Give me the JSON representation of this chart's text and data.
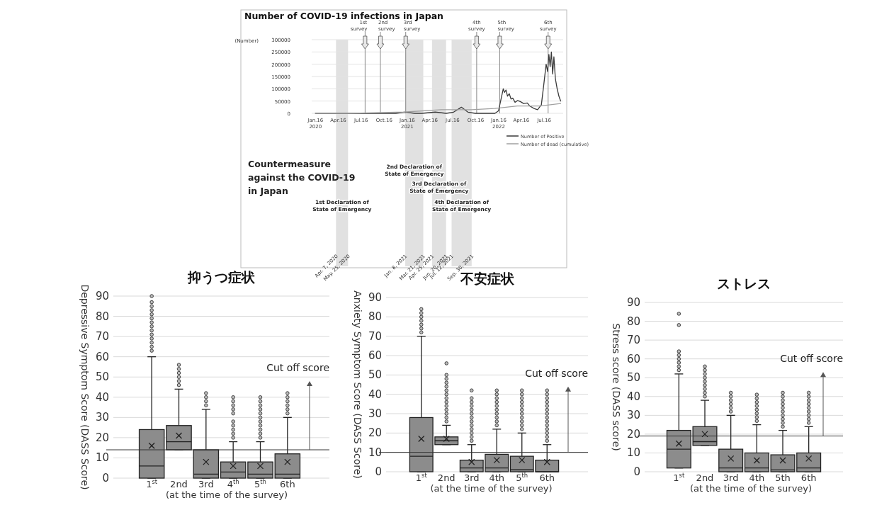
{
  "chart_data": [
    {
      "type": "line",
      "title": "Number of COVID-19 infections in Japan",
      "ylabel": "(Number)",
      "xlim": [
        "2020-01-01",
        "2022-09-30"
      ],
      "xticks": [
        {
          "value": "2020-01-16",
          "label": "Jan.16\n2020"
        },
        {
          "value": "2020-04-16",
          "label": "Apr.16"
        },
        {
          "value": "2020-07-16",
          "label": "Jul.16"
        },
        {
          "value": "2020-10-16",
          "label": "Oct.16"
        },
        {
          "value": "2021-01-16",
          "label": "Jan.16\n2021"
        },
        {
          "value": "2021-04-16",
          "label": "Apr.16"
        },
        {
          "value": "2021-07-16",
          "label": "Jul.16"
        },
        {
          "value": "2021-10-16",
          "label": "Oct.16"
        },
        {
          "value": "2022-01-16",
          "label": "Jan.16\n2022"
        },
        {
          "value": "2022-04-16",
          "label": "Apr.16"
        },
        {
          "value": "2022-07-16",
          "label": "Jul.16"
        }
      ],
      "ylim": [
        0,
        300000
      ],
      "yticks": [
        0,
        50000,
        100000,
        150000,
        200000,
        250000,
        300000
      ],
      "grid": "y",
      "legend": "bottom right",
      "series": [
        {
          "name": "Number of Positive",
          "color": "#3a3a3a",
          "x": [
            "2020-01-16",
            "2020-03-01",
            "2020-04-11",
            "2020-05-25",
            "2020-07-01",
            "2020-08-07",
            "2020-09-20",
            "2020-11-01",
            "2020-12-01",
            "2021-01-08",
            "2021-02-15",
            "2021-03-15",
            "2021-05-08",
            "2021-06-20",
            "2021-07-20",
            "2021-08-20",
            "2021-09-15",
            "2021-10-15",
            "2021-12-01",
            "2022-01-01",
            "2022-01-15",
            "2022-02-03",
            "2022-02-08",
            "2022-02-14",
            "2022-02-20",
            "2022-02-27",
            "2022-03-06",
            "2022-03-13",
            "2022-03-22",
            "2022-04-01",
            "2022-04-12",
            "2022-04-25",
            "2022-05-10",
            "2022-05-20",
            "2022-06-05",
            "2022-06-20",
            "2022-07-05",
            "2022-07-15",
            "2022-07-24",
            "2022-07-30",
            "2022-08-04",
            "2022-08-09",
            "2022-08-14",
            "2022-08-19",
            "2022-08-24",
            "2022-08-30",
            "2022-09-06",
            "2022-09-13",
            "2022-09-20"
          ],
          "values": [
            0,
            0,
            0,
            0,
            0,
            0,
            0,
            0,
            0,
            5000,
            0,
            0,
            5000,
            0,
            5000,
            25000,
            5000,
            0,
            0,
            0,
            10000,
            100000,
            85000,
            95000,
            70000,
            80000,
            58000,
            62000,
            45000,
            52000,
            48000,
            40000,
            42000,
            30000,
            20000,
            15000,
            35000,
            120000,
            200000,
            170000,
            240000,
            190000,
            250000,
            160000,
            230000,
            140000,
            100000,
            70000,
            50000
          ]
        },
        {
          "name": "Number of dead (cumulative)",
          "color": "#a0a0a0",
          "x": [
            "2020-01-16",
            "2020-06-01",
            "2020-12-31",
            "2021-06-01",
            "2021-09-30",
            "2021-12-31",
            "2022-03-31",
            "2022-06-30",
            "2022-09-20"
          ],
          "values": [
            0,
            0,
            5000,
            15000,
            15000,
            20000,
            30000,
            30000,
            40000
          ]
        }
      ],
      "ref_lines": [
        {
          "axis": "x",
          "value": "2020-08-01",
          "label": "1st survey",
          "color": "#888888"
        },
        {
          "axis": "x",
          "value": "2020-10-01",
          "label": "2nd survey",
          "color": "#888888"
        },
        {
          "axis": "x",
          "value": "2021-01-10",
          "label": "3rd survey",
          "color": "#888888"
        },
        {
          "axis": "x",
          "value": "2021-10-20",
          "label": "4th survey",
          "color": "#888888"
        },
        {
          "axis": "x",
          "value": "2022-01-20",
          "label": "5th survey",
          "color": "#888888"
        },
        {
          "axis": "x",
          "value": "2022-08-01",
          "label": "6th survey",
          "color": "#888888"
        }
      ],
      "bands": [
        {
          "axis": "x",
          "from": "2020-04-07",
          "to": "2020-05-25",
          "label": "1st Declaration of State of Emergency",
          "color": "#d9d9d9"
        },
        {
          "axis": "x",
          "from": "2021-01-08",
          "to": "2021-03-21",
          "label": "2nd Declaration of State of Emergency",
          "color": "#d9d9d9"
        },
        {
          "axis": "x",
          "from": "2021-04-25",
          "to": "2021-06-20",
          "label": "3rd Declaration of State of Emergency",
          "color": "#d9d9d9"
        },
        {
          "axis": "x",
          "from": "2021-07-12",
          "to": "2021-09-30",
          "label": "4th Declaration of State of Emergency",
          "color": "#d9d9d9"
        }
      ],
      "annotations": [
        "Countermeasure against the COVID-19 in Japan",
        {
          "text": "Apr. 7, 2020",
          "x": "2020-04-07"
        },
        {
          "text": "May. 25, 2020",
          "x": "2020-05-25"
        },
        {
          "text": "Jan. 8, 2021",
          "x": "2021-01-08"
        },
        {
          "text": "Mar. 21, 2021",
          "x": "2021-03-21"
        },
        {
          "text": "Apr. 25, 2021",
          "x": "2021-04-25"
        },
        {
          "text": "Jun. 20, 2021",
          "x": "2021-06-20"
        },
        {
          "text": "Jul. 12, 2021",
          "x": "2021-07-12"
        },
        {
          "text": "Sep. 30, 2021",
          "x": "2021-09-30"
        }
      ]
    },
    {
      "type": "box",
      "title": "抑うつ症状",
      "ylabel": "Depressive Symptom Score (DASS Score)",
      "xlabel": "(at the time of the survey)",
      "categories": [
        "1$^{st}$",
        "2nd",
        "3rd",
        "4$^{th}$",
        "5$^{th}$",
        "6th"
      ],
      "ylim": [
        0,
        90
      ],
      "yticks": [
        0,
        10,
        20,
        30,
        40,
        50,
        60,
        70,
        80,
        90
      ],
      "grid": "y",
      "ref_lines": [
        {
          "axis": "y",
          "value": 14,
          "label": "Cut off score",
          "color": "#333333"
        }
      ],
      "series": [
        {
          "color": "#8c8c8c",
          "boxes": [
            {
              "low": 0,
              "q1": 0,
              "median": 6,
              "q3": 24,
              "high": 60,
              "mean": 16,
              "outliers": [
                63,
                65,
                67,
                69,
                71,
                73,
                75,
                77,
                79,
                81,
                83,
                85,
                87,
                90
              ]
            },
            {
              "low": 14,
              "q1": 14,
              "median": 18,
              "q3": 26,
              "high": 44,
              "mean": 21,
              "outliers": [
                46,
                48,
                50,
                52,
                54,
                56
              ]
            },
            {
              "low": 0,
              "q1": 0,
              "median": 2,
              "q3": 14,
              "high": 34,
              "mean": 8,
              "outliers": [
                36,
                38,
                40,
                42
              ]
            },
            {
              "low": 0,
              "q1": 0,
              "median": 3,
              "q3": 8,
              "high": 18,
              "mean": 6,
              "outliers": [
                20,
                22,
                24,
                26,
                28,
                32,
                34,
                36,
                38,
                40
              ]
            },
            {
              "low": 0,
              "q1": 0,
              "median": 2,
              "q3": 8,
              "high": 18,
              "mean": 6,
              "outliers": [
                20,
                22,
                24,
                26,
                28,
                30,
                32,
                34,
                36,
                38,
                40
              ]
            },
            {
              "low": 0,
              "q1": 0,
              "median": 2,
              "q3": 12,
              "high": 30,
              "mean": 8,
              "outliers": [
                32,
                34,
                36,
                38,
                40,
                42
              ]
            }
          ]
        }
      ]
    },
    {
      "type": "box",
      "title": "不安症状",
      "ylabel": "Anxiety Symptom Score (DASS Score)",
      "xlabel": "(at the time of the survey)",
      "categories": [
        "1$^{st}$",
        "2nd",
        "3rd",
        "4th",
        "5$^{th}$",
        "6th"
      ],
      "ylim": [
        0,
        90
      ],
      "yticks": [
        0,
        10,
        20,
        30,
        40,
        50,
        60,
        70,
        80,
        90
      ],
      "grid": "y",
      "ref_lines": [
        {
          "axis": "y",
          "value": 10,
          "label": "Cut off score",
          "color": "#333333"
        }
      ],
      "series": [
        {
          "color": "#8c8c8c",
          "boxes": [
            {
              "low": 0,
              "q1": 0,
              "median": 8,
              "q3": 28,
              "high": 70,
              "mean": 17,
              "outliers": [
                72,
                74,
                76,
                78,
                80,
                82,
                84
              ]
            },
            {
              "low": 14,
              "q1": 14,
              "median": 16,
              "q3": 18,
              "high": 24,
              "mean": 17,
              "outliers": [
                26,
                28,
                30,
                32,
                34,
                36,
                38,
                40,
                42,
                44,
                46,
                48,
                50,
                56
              ]
            },
            {
              "low": 0,
              "q1": 0,
              "median": 2,
              "q3": 6,
              "high": 14,
              "mean": 5,
              "outliers": [
                16,
                18,
                20,
                22,
                24,
                26,
                28,
                30,
                32,
                34,
                36,
                38,
                42
              ]
            },
            {
              "low": 0,
              "q1": 0,
              "median": 2,
              "q3": 9,
              "high": 22,
              "mean": 6,
              "outliers": [
                24,
                26,
                28,
                30,
                32,
                34,
                36,
                38,
                40,
                42
              ]
            },
            {
              "low": 0,
              "q1": 0,
              "median": 1,
              "q3": 8,
              "high": 20,
              "mean": 6,
              "outliers": [
                22,
                24,
                26,
                28,
                30,
                32,
                34,
                36,
                38,
                40,
                42
              ]
            },
            {
              "low": 0,
              "q1": 0,
              "median": 0,
              "q3": 6,
              "high": 14,
              "mean": 5,
              "outliers": [
                16,
                18,
                20,
                22,
                24,
                26,
                28,
                30,
                32,
                34,
                36,
                38,
                40,
                42
              ]
            }
          ]
        }
      ]
    },
    {
      "type": "box",
      "title": "ストレス",
      "ylabel": "Stress score (DASS score)",
      "xlabel": "(at the time of the survey)",
      "categories": [
        "1$^{st}$",
        "2nd",
        "3rd",
        "4th",
        "5th",
        "6th"
      ],
      "ylim": [
        0,
        90
      ],
      "yticks": [
        0,
        10,
        20,
        30,
        40,
        50,
        60,
        70,
        80,
        90
      ],
      "grid": "y",
      "ref_lines": [
        {
          "axis": "y",
          "value": 19,
          "label": "Cut off score",
          "color": "#333333"
        }
      ],
      "series": [
        {
          "color": "#8c8c8c",
          "boxes": [
            {
              "low": 2,
              "q1": 2,
              "median": 12,
              "q3": 22,
              "high": 52,
              "mean": 15,
              "outliers": [
                54,
                56,
                58,
                60,
                62,
                64,
                78,
                84
              ]
            },
            {
              "low": 14,
              "q1": 14,
              "median": 16,
              "q3": 24,
              "high": 38,
              "mean": 20,
              "outliers": [
                40,
                42,
                44,
                46,
                48,
                50,
                52,
                54,
                56
              ]
            },
            {
              "low": 0,
              "q1": 0,
              "median": 2,
              "q3": 12,
              "high": 30,
              "mean": 7,
              "outliers": [
                32,
                34,
                36,
                38,
                40,
                42
              ]
            },
            {
              "low": 0,
              "q1": 0,
              "median": 2,
              "q3": 10,
              "high": 25,
              "mean": 6,
              "outliers": [
                27,
                29,
                31,
                33,
                35,
                37,
                39,
                41
              ]
            },
            {
              "low": 0,
              "q1": 0,
              "median": 1,
              "q3": 9,
              "high": 22,
              "mean": 6,
              "outliers": [
                24,
                26,
                28,
                30,
                32,
                34,
                36,
                38,
                40,
                42
              ]
            },
            {
              "low": 0,
              "q1": 0,
              "median": 2,
              "q3": 10,
              "high": 24,
              "mean": 7,
              "outliers": [
                26,
                28,
                30,
                32,
                34,
                36,
                38,
                40,
                42
              ]
            }
          ]
        }
      ]
    }
  ]
}
